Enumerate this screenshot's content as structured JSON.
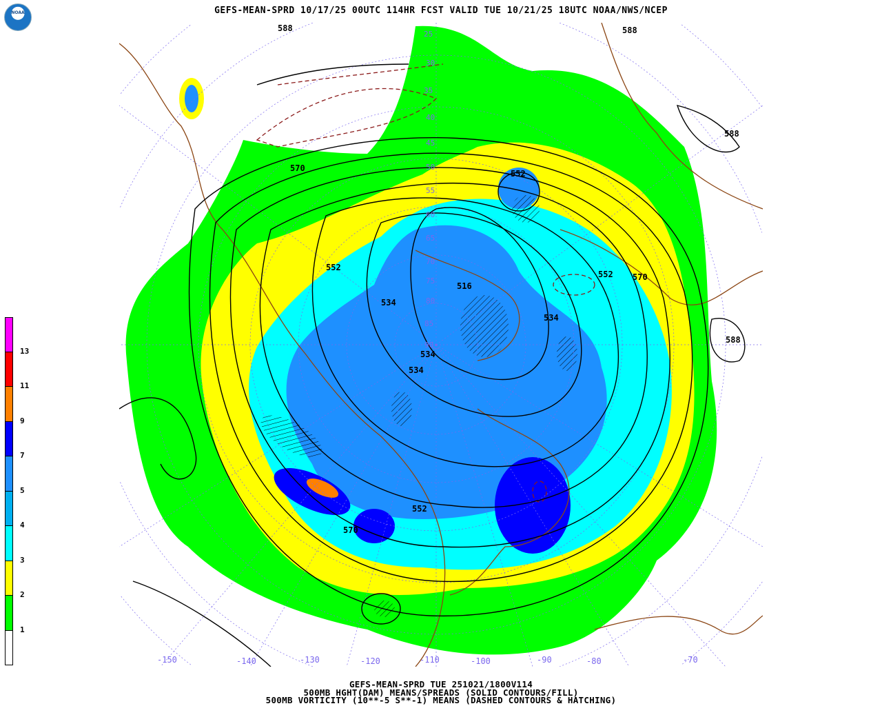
{
  "header": {
    "title": "GEFS-MEAN-SPRD 10/17/25 00UTC 114HR FCST VALID TUE 10/21/25 18UTC NOAA/NWS/NCEP",
    "logo_text": "NOAA"
  },
  "footer": {
    "line1": "GEFS-MEAN-SPRD TUE 251021/1800V114",
    "line2": "500MB HGHT(DAM) MEANS/SPREADS (SOLID CONTOURS/FILL)",
    "line3": "500MB VORTICITY (10**-5 S**-1) MEANS (DASHED CONTOURS & HATCHING)"
  },
  "colorbar": {
    "colors": [
      "#ff00ff",
      "#ff0000",
      "#ff8000",
      "#0000ff",
      "#1e90ff",
      "#00b0f0",
      "#00ffff",
      "#ffff00",
      "#00ff00",
      "#ffffff"
    ],
    "labels": [
      "13",
      "11",
      "9",
      "7",
      "5",
      "4",
      "3",
      "2",
      "1"
    ]
  },
  "map": {
    "longitude_labels": [
      "-150",
      "-140",
      "-130",
      "-120",
      "-110",
      "-100",
      "-90",
      "-80",
      "-70"
    ],
    "latitude_labels": [
      "25",
      "30",
      "35",
      "40",
      "45",
      "50",
      "55",
      "60",
      "65",
      "70",
      "75",
      "80",
      "85",
      "90"
    ],
    "contour_labels": [
      "588",
      "588",
      "588",
      "588",
      "570",
      "570",
      "570",
      "552",
      "552",
      "552",
      "552",
      "534",
      "534",
      "534",
      "534",
      "516"
    ],
    "colors": {
      "land_outline": "#8b4513",
      "grid": "#7b68ee",
      "contour": "#000000",
      "vorticity": "#8b1a1a"
    }
  }
}
